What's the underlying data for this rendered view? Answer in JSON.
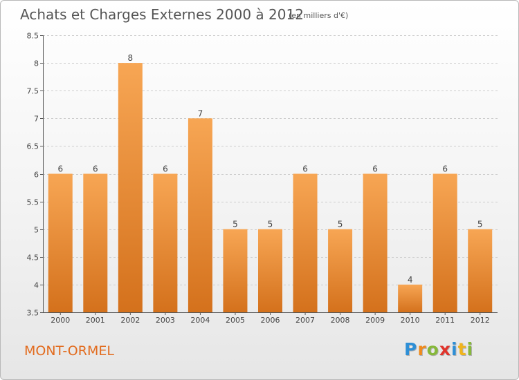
{
  "title": "Achats et Charges Externes 2000 à 2012",
  "subtitle": "(en milliers d'€)",
  "place": "MONT-ORMEL",
  "logo": {
    "letters": [
      "P",
      "r",
      "o",
      "x",
      "i",
      "t",
      "i"
    ],
    "colors": [
      "#2e8fd6",
      "#f08a1c",
      "#86b83a",
      "#e0342c",
      "#2e8fd6",
      "#f0b41c",
      "#86b83a"
    ]
  },
  "colors": {
    "bar_top": "#f7a654",
    "bar_bottom": "#d4711c",
    "grid": "#cccccc",
    "axis": "#555555",
    "text": "#444444"
  },
  "chart_data": {
    "type": "bar",
    "title": "Achats et Charges Externes 2000 à 2012",
    "subtitle": "(en milliers d'€)",
    "categories": [
      "2000",
      "2001",
      "2002",
      "2003",
      "2004",
      "2005",
      "2006",
      "2007",
      "2008",
      "2009",
      "2010",
      "2011",
      "2012"
    ],
    "values": [
      6,
      6,
      8,
      6,
      7,
      5,
      5,
      6,
      5,
      6,
      4,
      6,
      5
    ],
    "ylim": [
      3.5,
      8.5
    ],
    "yticks": [
      "3.5",
      "4",
      "4.5",
      "5",
      "5.5",
      "6",
      "6.5",
      "7",
      "7.5",
      "8",
      "8.5"
    ],
    "grid": true,
    "xlabel": "",
    "ylabel": ""
  }
}
